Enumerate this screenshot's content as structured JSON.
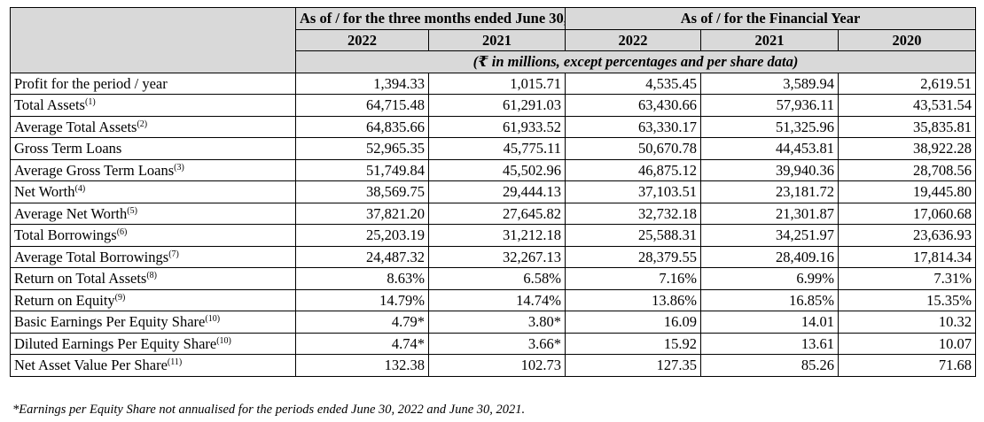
{
  "header": {
    "group1": "As of / for the three months ended June 30,",
    "group2": "As of / for the Financial Year",
    "years": [
      "2022",
      "2021",
      "2022",
      "2021",
      "2020"
    ],
    "unit_note": "(₹ in millions, except percentages and per share data)"
  },
  "rows": [
    {
      "label": "Profit for the period / year",
      "note": "",
      "values": [
        "1,394.33",
        "1,015.71",
        "4,535.45",
        "3,589.94",
        "2,619.51"
      ]
    },
    {
      "label": "Total Assets",
      "note": "(1)",
      "values": [
        "64,715.48",
        "61,291.03",
        "63,430.66",
        "57,936.11",
        "43,531.54"
      ]
    },
    {
      "label": "Average Total Assets",
      "note": "(2)",
      "values": [
        "64,835.66",
        "61,933.52",
        "63,330.17",
        "51,325.96",
        "35,835.81"
      ]
    },
    {
      "label": "Gross Term Loans",
      "note": "",
      "values": [
        "52,965.35",
        "45,775.11",
        "50,670.78",
        "44,453.81",
        "38,922.28"
      ]
    },
    {
      "label": "Average Gross Term Loans",
      "note": "(3)",
      "values": [
        "51,749.84",
        "45,502.96",
        "46,875.12",
        "39,940.36",
        "28,708.56"
      ]
    },
    {
      "label": "Net Worth",
      "note": "(4)",
      "values": [
        "38,569.75",
        "29,444.13",
        "37,103.51",
        "23,181.72",
        "19,445.80"
      ]
    },
    {
      "label": "Average Net Worth",
      "note": "(5)",
      "values": [
        "37,821.20",
        "27,645.82",
        "32,732.18",
        "21,301.87",
        "17,060.68"
      ]
    },
    {
      "label": "Total Borrowings",
      "note": "(6)",
      "values": [
        "25,203.19",
        "31,212.18",
        "25,588.31",
        "34,251.97",
        "23,636.93"
      ]
    },
    {
      "label": "Average Total Borrowings",
      "note": "(7)",
      "values": [
        "24,487.32",
        "32,267.13",
        "28,379.55",
        "28,409.16",
        "17,814.34"
      ]
    },
    {
      "label": "Return on Total Assets",
      "note": "(8)",
      "values": [
        "8.63%",
        "6.58%",
        "7.16%",
        "6.99%",
        "7.31%"
      ]
    },
    {
      "label": "Return on Equity",
      "note": "(9)",
      "values": [
        "14.79%",
        "14.74%",
        "13.86%",
        "16.85%",
        "15.35%"
      ]
    },
    {
      "label": "Basic Earnings Per Equity Share",
      "note": "(10)",
      "values": [
        "4.79*",
        "3.80*",
        "16.09",
        "14.01",
        "10.32"
      ]
    },
    {
      "label": "Diluted Earnings Per Equity Share",
      "note": "(10)",
      "values": [
        "4.74*",
        "3.66*",
        "15.92",
        "13.61",
        "10.07"
      ]
    },
    {
      "label": "Net Asset Value Per Share",
      "note": "(11)",
      "values": [
        "132.38",
        "102.73",
        "127.35",
        "85.26",
        "71.68"
      ]
    }
  ],
  "footnote": "*Earnings per Equity Share not annualised for the periods ended June 30, 2022 and June 30, 2021."
}
